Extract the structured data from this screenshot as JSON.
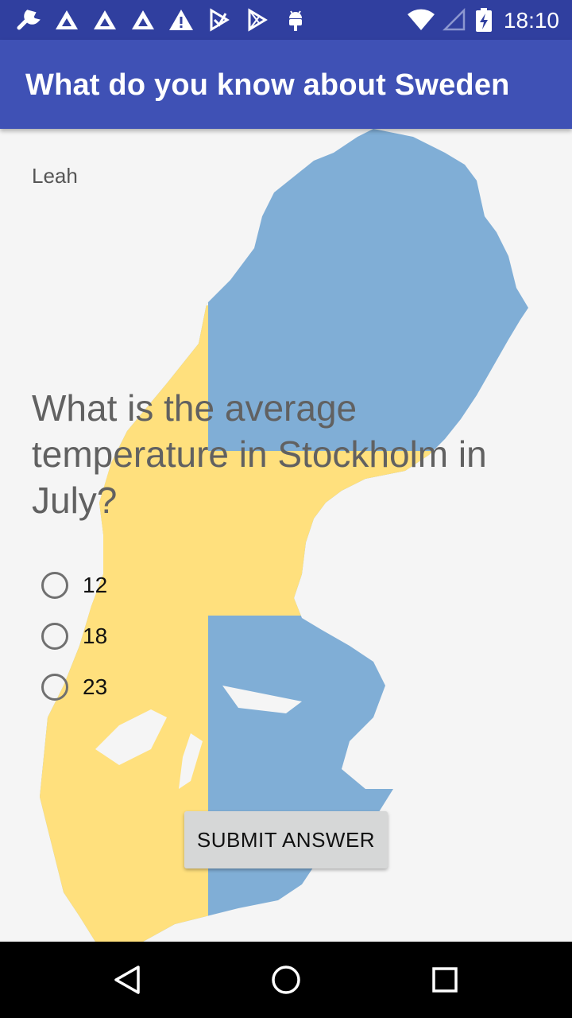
{
  "status_bar": {
    "time": "18:10",
    "left_icons": [
      "wrench-icon",
      "warning-triangle-icon",
      "warning-triangle-icon",
      "warning-triangle-icon",
      "alert-icon",
      "play-store-icon",
      "play-store-icon",
      "android-icon"
    ],
    "right_icons": [
      "wifi-icon",
      "cell-signal-icon",
      "battery-charging-icon"
    ]
  },
  "app_bar": {
    "title": "What do you know about Sweden"
  },
  "quiz": {
    "user_name": "Leah",
    "question": "What is the average temperature in Stockholm in July?",
    "options": [
      {
        "label": "12",
        "selected": false
      },
      {
        "label": "18",
        "selected": false
      },
      {
        "label": "23",
        "selected": false
      }
    ],
    "submit_label": "SUBMIT ANSWER"
  },
  "colors": {
    "status_bar": "#303F9F",
    "app_bar": "#3F51B5",
    "flag_blue": "#80AED6",
    "flag_yellow": "#FFE07D"
  },
  "nav_bar": {
    "icons": [
      "back-icon",
      "home-icon",
      "recents-icon"
    ]
  }
}
